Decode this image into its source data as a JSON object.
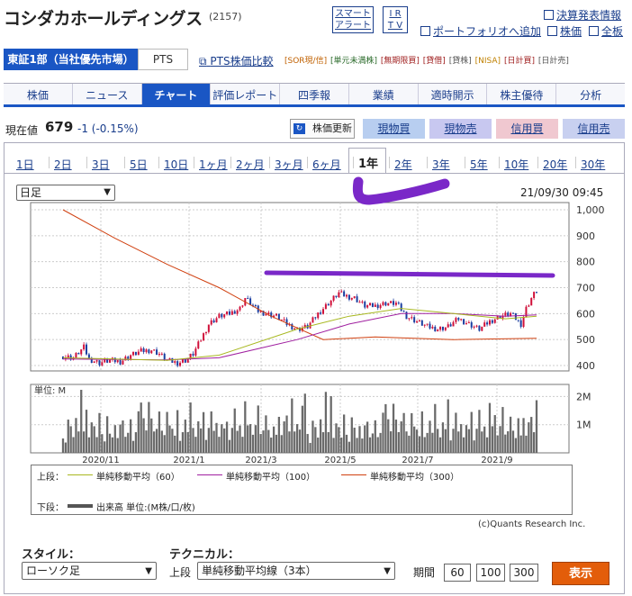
{
  "header": {
    "company_name": "コシダカホールディングス",
    "code": "(2157)",
    "smart_alert": [
      "スマート",
      "アラート"
    ],
    "ir_tv": [
      "I R",
      "T V"
    ],
    "links": {
      "earnings": "決算発表情報",
      "portfolio": "ポートフォリオへ追加",
      "price": "株価",
      "board": "全板"
    }
  },
  "market": {
    "selected": "東証1部（当社優先市場）",
    "pts": "PTS",
    "pts_compare": "PTS株価比較",
    "tags": [
      "[SOR現/信]",
      "[単元未満株]",
      "[無期限買]",
      "[貸借]",
      "[貸株]",
      "[NISA]",
      "[日計買]",
      "[日計売]"
    ]
  },
  "nav": {
    "items": [
      "株価",
      "ニュース",
      "チャート",
      "評価レポート",
      "四季報",
      "業績",
      "適時開示",
      "株主優待",
      "分析"
    ],
    "active": 2
  },
  "price": {
    "label": "現在値",
    "value": "679",
    "change": "-1 (-0.15%)",
    "refresh": "株価更新",
    "buttons": [
      "現物買",
      "現物売",
      "信用買",
      "信用売"
    ]
  },
  "ranges": {
    "items": [
      "1日",
      "2日",
      "3日",
      "5日",
      "10日",
      "1ヶ月",
      "2ヶ月",
      "3ヶ月",
      "6ヶ月",
      "1年",
      "2年",
      "3年",
      "5年",
      "10年",
      "20年",
      "30年"
    ],
    "active": 9
  },
  "chart_controls": {
    "period": "日足",
    "datetime": "21/09/30 09:45"
  },
  "chart_data": {
    "type": "candlestick",
    "y_ticks": [
      "1,000",
      "900",
      "800",
      "700",
      "600",
      "500",
      "400"
    ],
    "ylim": [
      400,
      1000
    ],
    "volume_unit_label": "単位: M",
    "volume_ticks": [
      "2M",
      "1M"
    ],
    "x_ticks": [
      "2020/11",
      "2021/1",
      "2021/3",
      "2021/5",
      "2021/7",
      "2021/9"
    ],
    "price_path": [
      [
        0,
        435
      ],
      [
        4,
        430
      ],
      [
        8,
        470
      ],
      [
        10,
        425
      ],
      [
        14,
        410
      ],
      [
        18,
        420
      ],
      [
        22,
        415
      ],
      [
        26,
        440
      ],
      [
        30,
        455
      ],
      [
        34,
        460
      ],
      [
        37,
        445
      ],
      [
        40,
        420
      ],
      [
        44,
        410
      ],
      [
        47,
        420
      ],
      [
        50,
        445
      ],
      [
        53,
        500
      ],
      [
        56,
        560
      ],
      [
        60,
        590
      ],
      [
        64,
        600
      ],
      [
        68,
        620
      ],
      [
        70,
        660
      ],
      [
        72,
        640
      ],
      [
        75,
        610
      ],
      [
        78,
        600
      ],
      [
        82,
        590
      ],
      [
        86,
        560
      ],
      [
        90,
        540
      ],
      [
        94,
        550
      ],
      [
        98,
        600
      ],
      [
        102,
        640
      ],
      [
        106,
        680
      ],
      [
        108,
        670
      ],
      [
        112,
        660
      ],
      [
        116,
        630
      ],
      [
        120,
        630
      ],
      [
        124,
        640
      ],
      [
        128,
        640
      ],
      [
        132,
        590
      ],
      [
        136,
        570
      ],
      [
        140,
        550
      ],
      [
        144,
        540
      ],
      [
        148,
        550
      ],
      [
        152,
        580
      ],
      [
        156,
        560
      ],
      [
        160,
        540
      ],
      [
        164,
        570
      ],
      [
        168,
        590
      ],
      [
        172,
        600
      ],
      [
        176,
        560
      ],
      [
        178,
        620
      ],
      [
        180,
        660
      ],
      [
        182,
        690
      ]
    ],
    "ma60": [
      [
        0,
        430
      ],
      [
        40,
        420
      ],
      [
        60,
        440
      ],
      [
        90,
        540
      ],
      [
        110,
        590
      ],
      [
        130,
        620
      ],
      [
        150,
        600
      ],
      [
        170,
        580
      ],
      [
        182,
        590
      ]
    ],
    "ma100": [
      [
        0,
        425
      ],
      [
        40,
        422
      ],
      [
        60,
        430
      ],
      [
        90,
        500
      ],
      [
        110,
        560
      ],
      [
        130,
        600
      ],
      [
        150,
        600
      ],
      [
        170,
        590
      ],
      [
        182,
        595
      ]
    ],
    "ma300": [
      [
        0,
        1000
      ],
      [
        20,
        890
      ],
      [
        40,
        790
      ],
      [
        60,
        700
      ],
      [
        80,
        590
      ],
      [
        100,
        500
      ],
      [
        120,
        510
      ],
      [
        150,
        500
      ],
      [
        182,
        505
      ]
    ],
    "volumes": [
      0.6,
      0.4,
      1.2,
      0.9,
      0.5,
      1.4,
      0.8,
      2.2,
      0.7,
      1.8,
      0.6,
      1.1,
      0.9,
      0.5,
      1.6,
      0.7,
      0.4,
      1.2,
      0.8,
      0.6,
      1.0,
      0.5,
      0.9,
      1.3,
      0.6,
      0.7,
      1.1,
      0.5,
      0.8,
      1.5,
      1.7,
      1.1,
      0.9,
      1.9,
      1.2,
      0.7,
      1.0,
      1.6,
      0.8,
      0.6,
      1.3,
      1.1,
      0.9,
      0.6,
      1.4,
      0.5,
      0.8,
      1.2,
      0.7,
      1.6,
      1.0,
      0.6,
      1.1,
      0.8,
      1.7,
      0.5,
      0.9,
      1.4,
      0.7,
      1.2,
      0.6,
      1.0,
      0.8,
      1.3,
      0.5,
      0.9,
      1.5,
      0.7,
      1.1,
      0.6,
      1.8,
      0.9,
      1.2,
      0.7,
      1.0,
      1.6,
      0.6,
      0.9,
      1.4,
      0.8,
      0.5,
      1.1,
      0.7,
      1.3,
      0.6,
      1.0,
      1.5,
      0.8,
      1.9,
      0.7,
      1.2,
      0.9,
      1.7,
      2.0
    ]
  },
  "legend": {
    "upper_label": "上段：",
    "lower_label": "下段：",
    "items": [
      {
        "label": "単純移動平均（60）",
        "color": "#a8b820"
      },
      {
        "label": "単純移動平均（100）",
        "color": "#a020a0"
      },
      {
        "label": "単純移動平均（300）",
        "color": "#d04010"
      }
    ],
    "volume_label": "出来高 単位:(M株/口/枚)",
    "copyright": "(c)Quants Research Inc."
  },
  "controls": {
    "style_label": "スタイル：",
    "technical_label": "テクニカル：",
    "style_value": "ローソク足",
    "upper_prefix": "上段",
    "technical_value": "単純移動平均線（3本）",
    "period_label": "期間",
    "periods": [
      "60",
      "100",
      "300"
    ],
    "show_button": "表示"
  },
  "colors": {
    "up": "#d0103a",
    "down": "#1a3ea0",
    "annotation": "#7a28c8"
  }
}
